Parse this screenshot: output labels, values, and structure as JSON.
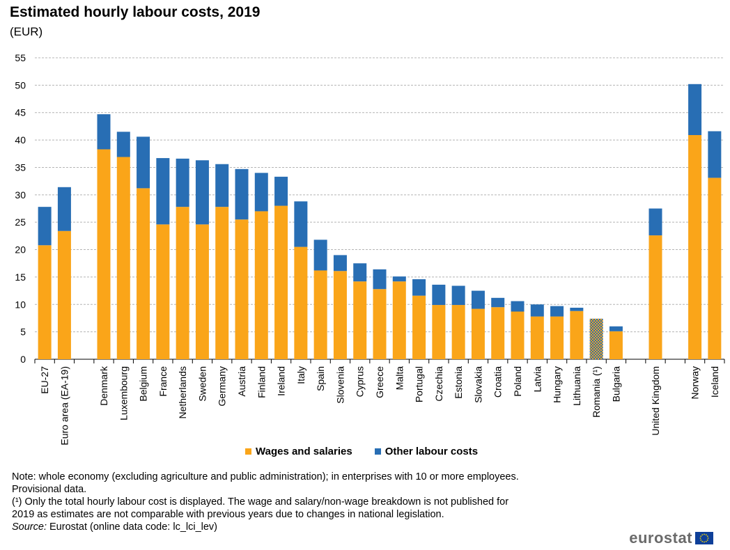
{
  "header": {
    "title": "Estimated hourly labour costs, 2019",
    "subtitle": "(EUR)"
  },
  "colors": {
    "wages": "#faa519",
    "other": "#286eb4",
    "grid": "#b4b4b4"
  },
  "chart_data": {
    "type": "bar",
    "stacked": true,
    "ylim": [
      0,
      55
    ],
    "yticks": [
      0,
      5,
      10,
      15,
      20,
      25,
      30,
      35,
      40,
      45,
      50,
      55
    ],
    "grid": true,
    "legend_position": "bottom",
    "categories": [
      "EU-27",
      "Euro area (EA-19)",
      "",
      "Denmark",
      "Luxembourg",
      "Belgium",
      "France",
      "Netherlands",
      "Sweden",
      "Germany",
      "Austria",
      "Finland",
      "Ireland",
      "Italy",
      "Spain",
      "Slovenia",
      "Cyprus",
      "Greece",
      "Malta",
      "Portugal",
      "Czechia",
      "Estonia",
      "Slovakia",
      "Croatia",
      "Poland",
      "Latvia",
      "Hungary",
      "Lithuania",
      "Romania (¹)",
      "Bulgaria",
      "",
      "United Kingdom",
      "",
      "Norway",
      "Iceland"
    ],
    "totals_only": [
      "Romania (¹)"
    ],
    "series": [
      {
        "name": "Wages and salaries",
        "values": [
          20.8,
          23.4,
          null,
          38.3,
          36.9,
          31.2,
          24.6,
          27.8,
          24.6,
          27.8,
          25.5,
          27.0,
          28.0,
          20.5,
          16.2,
          16.1,
          14.2,
          12.8,
          14.2,
          11.6,
          9.9,
          9.9,
          9.2,
          9.5,
          8.7,
          7.8,
          7.8,
          8.8,
          null,
          5.1,
          null,
          22.6,
          null,
          40.9,
          33.1
        ]
      },
      {
        "name": "Other labour costs",
        "values": [
          7.0,
          8.0,
          null,
          6.4,
          4.6,
          9.4,
          12.1,
          8.8,
          11.7,
          7.8,
          9.2,
          7.0,
          5.3,
          8.3,
          5.6,
          2.9,
          3.3,
          3.6,
          0.9,
          3.0,
          3.7,
          3.5,
          3.3,
          1.7,
          1.9,
          2.2,
          1.9,
          0.6,
          null,
          0.9,
          null,
          4.9,
          null,
          9.3,
          8.5
        ]
      },
      {
        "name": "Total",
        "values": [
          null,
          null,
          null,
          null,
          null,
          null,
          null,
          null,
          null,
          null,
          null,
          null,
          null,
          null,
          null,
          null,
          null,
          null,
          null,
          null,
          null,
          null,
          null,
          null,
          null,
          null,
          null,
          null,
          7.4,
          null,
          null,
          null,
          null,
          null,
          null
        ]
      }
    ]
  },
  "legend": {
    "wages_label": "Wages and salaries",
    "other_label": "Other labour costs"
  },
  "notes": {
    "line1": "Note: whole economy (excluding agriculture and public administration); in enterprises with 10 or more employees.",
    "line2": "Provisional data.",
    "line3": " (¹) Only the total hourly labour cost is displayed. The wage and salary/non-wage  breakdown is not published for",
    "line4": "2019 as estimates are not comparable with previous years due to changes in national legislation.",
    "source_label": "Source:",
    "source_text": " Eurostat (online data code: lc_lci_lev)"
  },
  "logo": {
    "text": "eurostat"
  }
}
